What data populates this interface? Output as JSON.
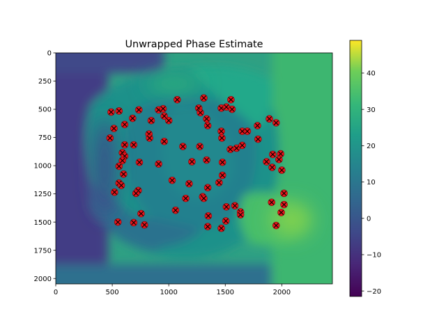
{
  "chart_data": {
    "type": "heatmap",
    "title": "Unwrapped Phase Estimate",
    "xlabel": "",
    "ylabel": "",
    "xlim": [
      0,
      2448
    ],
    "ylim": [
      2048,
      0
    ],
    "x_ticks": [
      "0",
      "500",
      "1000",
      "1500",
      "2000"
    ],
    "y_ticks": [
      "0",
      "250",
      "500",
      "750",
      "1000",
      "1250",
      "1500",
      "1750",
      "2000"
    ],
    "colorbar": {
      "colormap": "viridis",
      "range": [
        -21.5,
        49
      ],
      "ticks": [
        "−20",
        "−10",
        "0",
        "10",
        "20",
        "30",
        "40"
      ]
    },
    "field_description": "Phase field: dark blue-purple on the left edge, teal disc in the center, green region on the right, lighter yellow-green patch near the lower right.",
    "markers": {
      "style": "red filled circle with black x",
      "points": [
        [
          1310,
          400
        ],
        [
          1075,
          415
        ],
        [
          1550,
          415
        ],
        [
          490,
          525
        ],
        [
          560,
          515
        ],
        [
          735,
          505
        ],
        [
          910,
          505
        ],
        [
          950,
          495
        ],
        [
          1265,
          490
        ],
        [
          1280,
          530
        ],
        [
          1465,
          490
        ],
        [
          1510,
          480
        ],
        [
          1560,
          500
        ],
        [
          1335,
          585
        ],
        [
          1890,
          585
        ],
        [
          1950,
          620
        ],
        [
          960,
          560
        ],
        [
          1000,
          600
        ],
        [
          845,
          600
        ],
        [
          610,
          635
        ],
        [
          680,
          580
        ],
        [
          1345,
          645
        ],
        [
          1785,
          645
        ],
        [
          515,
          670
        ],
        [
          1650,
          695
        ],
        [
          1695,
          695
        ],
        [
          1465,
          695
        ],
        [
          1470,
          755
        ],
        [
          1790,
          765
        ],
        [
          825,
          720
        ],
        [
          830,
          755
        ],
        [
          480,
          755
        ],
        [
          960,
          785
        ],
        [
          610,
          815
        ],
        [
          690,
          815
        ],
        [
          1125,
          830
        ],
        [
          1275,
          830
        ],
        [
          1545,
          855
        ],
        [
          1600,
          845
        ],
        [
          1650,
          820
        ],
        [
          590,
          885
        ],
        [
          610,
          915
        ],
        [
          1920,
          900
        ],
        [
          1990,
          895
        ],
        [
          1975,
          945
        ],
        [
          1335,
          950
        ],
        [
          590,
          955
        ],
        [
          740,
          970
        ],
        [
          910,
          985
        ],
        [
          1205,
          965
        ],
        [
          1475,
          970
        ],
        [
          1865,
          965
        ],
        [
          1915,
          1015
        ],
        [
          2000,
          1040
        ],
        [
          560,
          1005
        ],
        [
          600,
          1075
        ],
        [
          1475,
          1085
        ],
        [
          1030,
          1130
        ],
        [
          1180,
          1160
        ],
        [
          1445,
          1150
        ],
        [
          560,
          1155
        ],
        [
          580,
          1175
        ],
        [
          1345,
          1195
        ],
        [
          730,
          1220
        ],
        [
          710,
          1245
        ],
        [
          520,
          1235
        ],
        [
          1300,
          1275
        ],
        [
          1310,
          1290
        ],
        [
          1150,
          1290
        ],
        [
          2020,
          1245
        ],
        [
          1910,
          1325
        ],
        [
          2020,
          1345
        ],
        [
          1510,
          1365
        ],
        [
          1585,
          1355
        ],
        [
          1060,
          1395
        ],
        [
          1635,
          1410
        ],
        [
          1635,
          1435
        ],
        [
          1995,
          1415
        ],
        [
          755,
          1425
        ],
        [
          1350,
          1445
        ],
        [
          1505,
          1490
        ],
        [
          550,
          1500
        ],
        [
          690,
          1505
        ],
        [
          785,
          1525
        ],
        [
          1345,
          1540
        ],
        [
          1465,
          1555
        ],
        [
          1950,
          1530
        ]
      ]
    }
  }
}
